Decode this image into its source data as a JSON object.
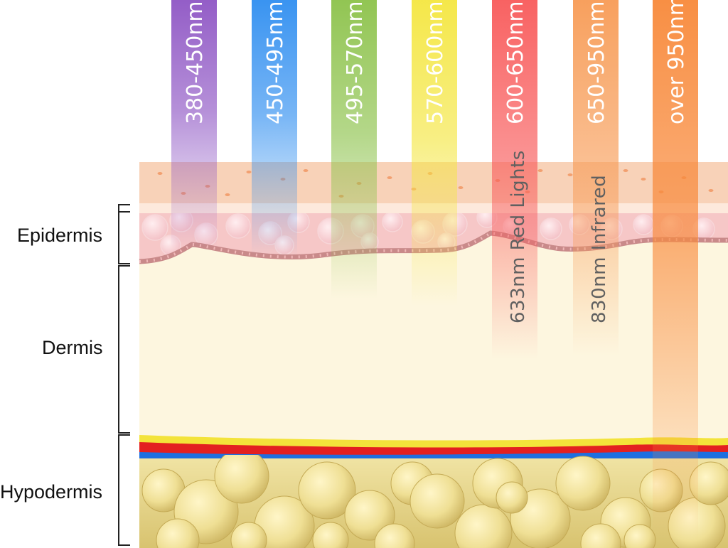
{
  "layers": [
    {
      "id": "epidermis",
      "label": "Epidermis"
    },
    {
      "id": "dermis",
      "label": "Dermis"
    },
    {
      "id": "hypodermis",
      "label": "Hypodermis"
    }
  ],
  "bands": [
    {
      "label": "380-450nm",
      "color": "#8e55c4"
    },
    {
      "label": "450-495nm",
      "color": "#2f8ef0"
    },
    {
      "label": "495-570nm",
      "color": "#8cc24a"
    },
    {
      "label": "570-600nm",
      "color": "#f4e640"
    },
    {
      "label": "600-650nm",
      "color": "#f85a5a"
    },
    {
      "label": "650-950nm",
      "color": "#f79b55"
    },
    {
      "label": "over  950nm",
      "color": "#f8893a"
    }
  ],
  "annotations": [
    {
      "label": "633nm Red Lights"
    },
    {
      "label": "830nm Infrared"
    }
  ],
  "colors": {
    "dermis": "#fdf6df",
    "epidermis_pink": "#f6c7c7",
    "stratum_peach": "#f8d2b8",
    "fat": "#e6d489",
    "artery": "#e32020",
    "vein": "#1e6fe0",
    "yellow_band": "#f3e33a"
  }
}
